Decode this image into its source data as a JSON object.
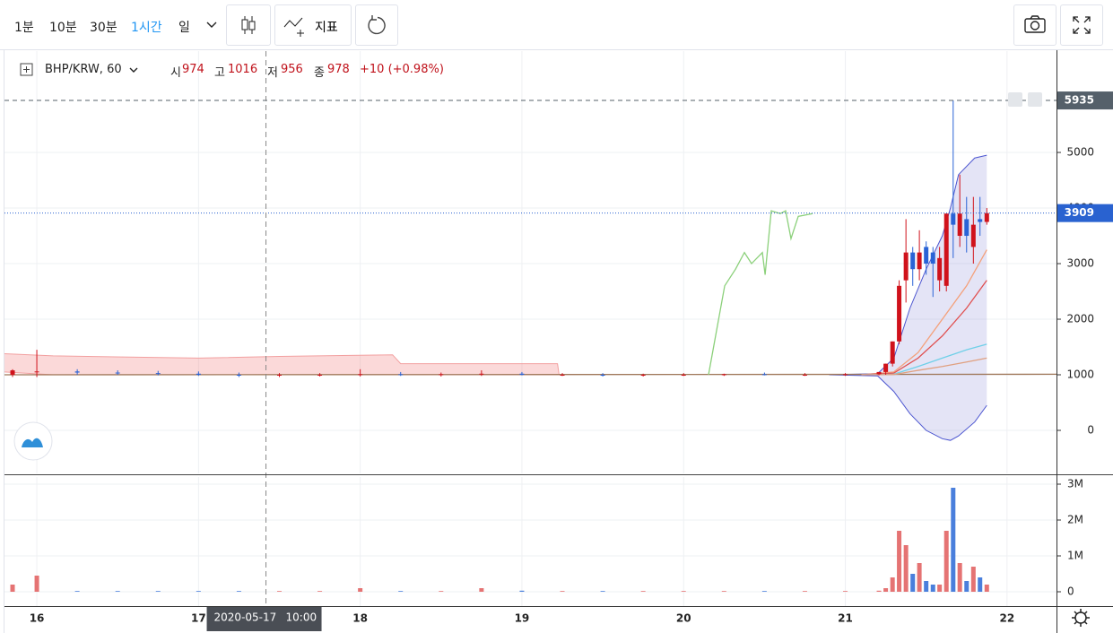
{
  "toolbar": {
    "intervals": [
      "1분",
      "10분",
      "30분",
      "1시간",
      "일"
    ],
    "indicators": "지표"
  },
  "legend": {
    "symbol": "BHP/KRW, 60",
    "open_label": "시",
    "open": 974,
    "high_label": "고",
    "high": 1016,
    "low_label": "저",
    "low": 956,
    "close_label": "종",
    "close": 978,
    "change": "+10 (+0.98%)"
  },
  "chart_data": {
    "type": "candlestick",
    "xlim": [
      15.8,
      22.306
    ],
    "xticks": [
      16,
      17,
      18,
      19,
      20,
      21,
      22
    ],
    "ylim": [
      -774,
      6823
    ],
    "yticks": [
      0,
      1000,
      2000,
      3000,
      4000,
      5000
    ],
    "grid": true,
    "up_color": "#d0121b",
    "down_color": "#2a63d6",
    "candles": {
      "x": [
        15.85,
        16.0,
        16.25,
        16.5,
        16.75,
        17.0,
        17.25,
        17.5,
        17.75,
        18.0,
        18.25,
        18.5,
        18.75,
        19.0,
        19.25,
        19.5,
        19.75,
        20.0,
        20.25,
        20.5,
        20.75,
        21.0,
        21.208,
        21.25,
        21.292,
        21.333,
        21.375,
        21.417,
        21.458,
        21.5,
        21.542,
        21.583,
        21.625,
        21.667,
        21.708,
        21.75,
        21.792,
        21.833,
        21.875
      ],
      "open": [
        1000,
        1050,
        1060,
        1040,
        1030,
        1020,
        1000,
        990,
        1000,
        1000,
        1010,
        1000,
        1010,
        1020,
        1000,
        1000,
        990,
        1000,
        1000,
        1010,
        1000,
        1000,
        1010,
        1050,
        1200,
        1600,
        2700,
        3200,
        2900,
        3300,
        3200,
        2700,
        2600,
        3900,
        3500,
        3800,
        3300,
        3800,
        3750
      ],
      "high": [
        1100,
        1450,
        1100,
        1080,
        1070,
        1060,
        1040,
        1030,
        1030,
        1100,
        1050,
        1040,
        1080,
        1050,
        1030,
        1030,
        1020,
        1030,
        1020,
        1040,
        1030,
        1030,
        1050,
        1200,
        1600,
        2700,
        3800,
        3300,
        3600,
        3400,
        3300,
        3300,
        3900,
        5935,
        4600,
        4200,
        4200,
        4200,
        4000
      ],
      "low": [
        960,
        960,
        1000,
        1000,
        990,
        980,
        960,
        960,
        970,
        970,
        980,
        970,
        980,
        990,
        980,
        970,
        970,
        980,
        980,
        990,
        980,
        980,
        990,
        1000,
        1150,
        1550,
        2300,
        2600,
        2700,
        2800,
        2400,
        2500,
        2500,
        3100,
        3300,
        3200,
        3000,
        3500,
        3700
      ],
      "close": [
        1080,
        1060,
        1040,
        1030,
        1020,
        1000,
        990,
        1000,
        1000,
        1010,
        1000,
        1010,
        1020,
        1000,
        1000,
        990,
        1000,
        1000,
        1010,
        1000,
        1000,
        1010,
        1050,
        1200,
        1600,
        2600,
        3200,
        2900,
        3200,
        3000,
        3000,
        3100,
        3900,
        3700,
        3900,
        3500,
        3700,
        3750,
        3909
      ]
    },
    "volume": {
      "values": [
        200000,
        450000,
        20000,
        20000,
        20000,
        20000,
        20000,
        20000,
        20000,
        100000,
        20000,
        20000,
        100000,
        30000,
        20000,
        20000,
        20000,
        20000,
        20000,
        20000,
        20000,
        20000,
        30000,
        100000,
        400000,
        1700000,
        1300000,
        500000,
        800000,
        300000,
        200000,
        200000,
        1700000,
        2900000,
        800000,
        300000,
        700000,
        400000,
        200000
      ],
      "ylim": [
        -400000,
        3200000
      ],
      "yticks": [
        0,
        {
          "value": 1000000,
          "label": "1M"
        },
        {
          "value": 2000000,
          "label": "2M"
        },
        {
          "value": 3000000,
          "label": "3M"
        }
      ],
      "up_color": "#e57373",
      "down_color": "#4a7fdc"
    },
    "bands": [
      {
        "line_color": "#f2a0a0",
        "fill": "rgba(240,120,120,0.28)",
        "x": [
          15.8,
          16.1,
          17.0,
          17.5,
          18.2,
          18.25,
          19.22,
          19.23
        ],
        "upper": [
          1380,
          1340,
          1300,
          1330,
          1360,
          1200,
          1200,
          1000
        ],
        "lower": [
          1050,
          1000,
          1000,
          1000,
          1000,
          1000,
          1000,
          1000
        ]
      },
      {
        "line_color": "#4b55d0",
        "fill": "rgba(120,120,210,0.2)",
        "x": [
          20.9,
          21.2,
          21.3,
          21.4,
          21.5,
          21.6,
          21.65,
          21.7,
          21.8,
          21.875
        ],
        "upper": [
          1000,
          1020,
          1300,
          2200,
          2900,
          3500,
          4000,
          4600,
          4900,
          4950
        ],
        "lower": [
          1000,
          980,
          700,
          300,
          0,
          -150,
          -180,
          -100,
          150,
          450
        ]
      }
    ],
    "lines": [
      {
        "color": "#a0785a",
        "x": [
          15.8,
          22.306
        ],
        "values": [
          1000,
          1010
        ]
      },
      {
        "color": "#f4a07a",
        "x": [
          21.1,
          21.3,
          21.45,
          21.6,
          21.75,
          21.875
        ],
        "values": [
          1000,
          1050,
          1400,
          2000,
          2600,
          3250
        ]
      },
      {
        "color": "#e05050",
        "x": [
          21.1,
          21.3,
          21.45,
          21.6,
          21.75,
          21.875
        ],
        "values": [
          1000,
          1030,
          1300,
          1700,
          2200,
          2700
        ]
      },
      {
        "color": "#6fd0e8",
        "x": [
          21.1,
          21.3,
          21.45,
          21.6,
          21.75,
          21.875
        ],
        "values": [
          1000,
          1010,
          1150,
          1300,
          1450,
          1550
        ]
      },
      {
        "color": "#e0a080",
        "x": [
          21.1,
          21.3,
          21.45,
          21.6,
          21.75,
          21.875
        ],
        "values": [
          1000,
          1005,
          1080,
          1150,
          1230,
          1300
        ]
      },
      {
        "color": "#8bd07a",
        "x": [
          20.154,
          20.254,
          20.321,
          20.376,
          20.42,
          20.487,
          20.504,
          20.542,
          20.598,
          20.631,
          20.664,
          20.709,
          20.798
        ],
        "values": [
          1000,
          2600,
          2900,
          3200,
          3000,
          3200,
          2800,
          3950,
          3900,
          3950,
          3450,
          3850,
          3900
        ]
      }
    ],
    "price_lines": [
      {
        "value": 5935,
        "color": "#55606a",
        "dash": "5,4"
      },
      {
        "value": 3909,
        "color": "#2962d0",
        "dash": "1,2"
      }
    ],
    "crosshair": {
      "x": 17.417,
      "date": "2020-05-17",
      "time": "10:00"
    }
  }
}
